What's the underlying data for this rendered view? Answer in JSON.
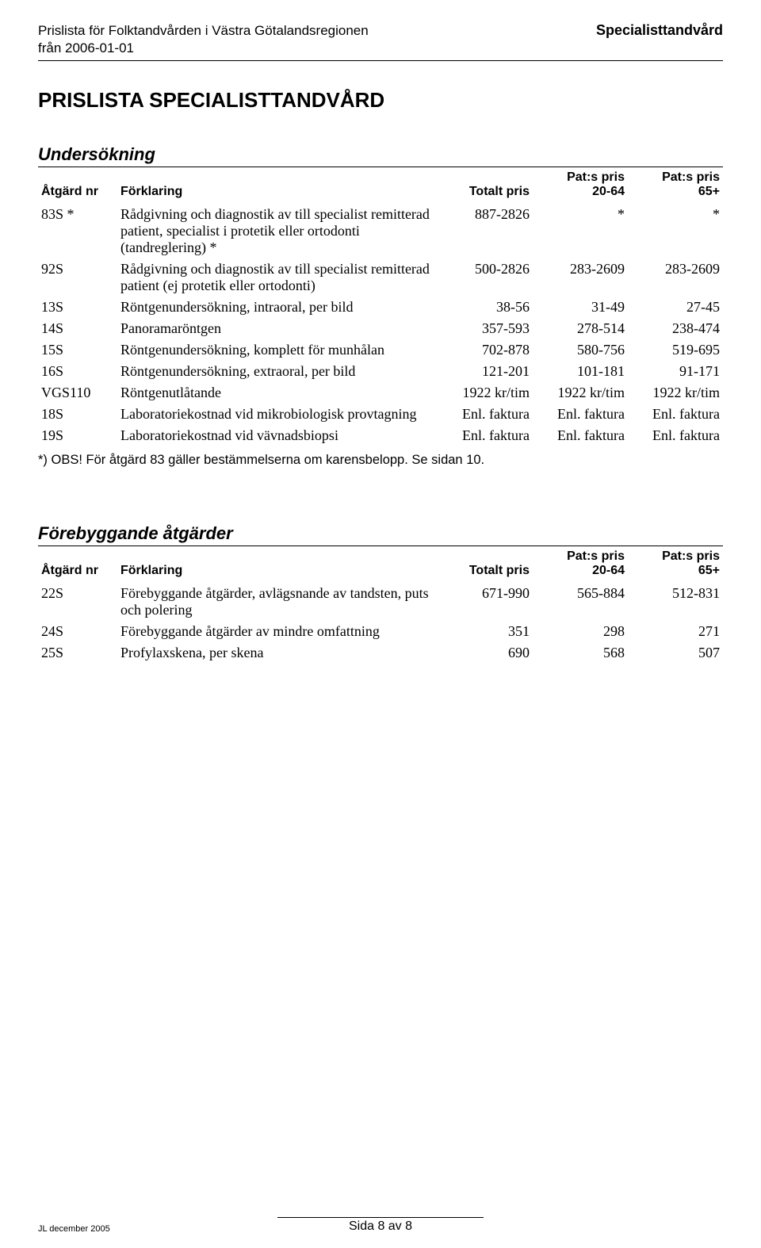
{
  "header": {
    "line1": "Prislista för Folktandvården i Västra Götalandsregionen",
    "line2": "från 2006-01-01",
    "right": "Specialisttandvård"
  },
  "page_title": "PRISLISTA SPECIALISTTANDVÅRD",
  "columns": {
    "atgard": "Åtgärd nr",
    "forkl": "Förklaring",
    "totalt": "Totalt pris",
    "p2064_a": "Pat:s pris",
    "p2064_b": "20-64",
    "p65_a": "Pat:s pris",
    "p65_b": "65+"
  },
  "section1": {
    "title": "Undersökning",
    "rows": [
      {
        "atgard": "83S *",
        "forkl": "Rådgivning och diagnostik av till specialist remitterad patient, specialist i protetik eller ortodonti (tandreglering) *",
        "c1": "887-2826",
        "c2": "*",
        "c3": "*"
      },
      {
        "atgard": "92S",
        "forkl": "Rådgivning och diagnostik av till specialist remitterad patient (ej protetik eller ortodonti)",
        "c1": "500-2826",
        "c2": "283-2609",
        "c3": "283-2609"
      },
      {
        "atgard": "13S",
        "forkl": "Röntgenundersökning, intraoral, per bild",
        "c1": "38-56",
        "c2": "31-49",
        "c3": "27-45"
      },
      {
        "atgard": "14S",
        "forkl": "Panoramaröntgen",
        "c1": "357-593",
        "c2": "278-514",
        "c3": "238-474"
      },
      {
        "atgard": "15S",
        "forkl": "Röntgenundersökning, komplett för munhålan",
        "c1": "702-878",
        "c2": "580-756",
        "c3": "519-695"
      },
      {
        "atgard": "16S",
        "forkl": "Röntgenundersökning, extraoral, per bild",
        "c1": "121-201",
        "c2": "101-181",
        "c3": "91-171"
      },
      {
        "atgard": "VGS110",
        "forkl": "Röntgenutlåtande",
        "c1": "1922 kr/tim",
        "c2": "1922 kr/tim",
        "c3": "1922 kr/tim"
      },
      {
        "atgard": "18S",
        "forkl": "Laboratoriekostnad vid mikrobiologisk provtagning",
        "c1": "Enl. faktura",
        "c2": "Enl. faktura",
        "c3": "Enl. faktura"
      },
      {
        "atgard": "19S",
        "forkl": "Laboratoriekostnad vid vävnadsbiopsi",
        "c1": "Enl. faktura",
        "c2": "Enl. faktura",
        "c3": "Enl. faktura"
      }
    ],
    "note": "*) OBS! För åtgärd 83 gäller bestämmelserna om karensbelopp. Se sidan 10."
  },
  "section2": {
    "title": "Förebyggande åtgärder",
    "rows": [
      {
        "atgard": "22S",
        "forkl": "Förebyggande åtgärder, avlägsnande av tandsten, puts och polering",
        "c1": "671-990",
        "c2": "565-884",
        "c3": "512-831"
      },
      {
        "atgard": "24S",
        "forkl": "Förebyggande åtgärder av mindre omfattning",
        "c1": "351",
        "c2": "298",
        "c3": "271"
      },
      {
        "atgard": "25S",
        "forkl": "Profylaxskena, per skena",
        "c1": "690",
        "c2": "568",
        "c3": "507"
      }
    ]
  },
  "footer": {
    "left": "JL december 2005",
    "center": "Sida 8 av 8"
  }
}
